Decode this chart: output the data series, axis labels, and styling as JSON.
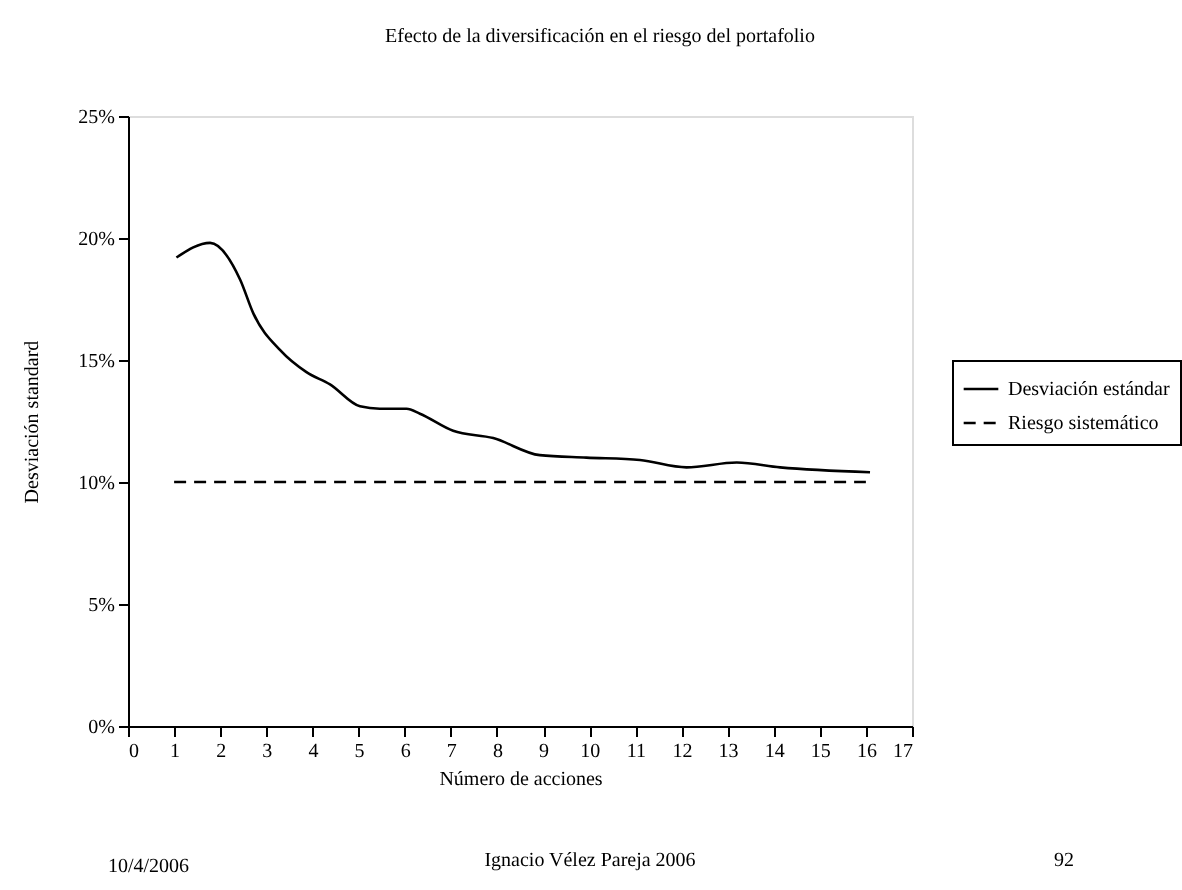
{
  "chart_data": {
    "type": "line",
    "title": "Efecto de la diversificación en el riesgo del portafolio",
    "xlabel": "Número de acciones",
    "ylabel": "Desviación standard",
    "xlim": [
      0,
      17
    ],
    "xticks": [
      0,
      1,
      2,
      3,
      4,
      5,
      6,
      7,
      8,
      9,
      10,
      11,
      12,
      13,
      14,
      15,
      16,
      17
    ],
    "ylim": [
      0,
      25
    ],
    "yticks": [
      {
        "value": 0,
        "label": "0%"
      },
      {
        "value": 5,
        "label": "5%"
      },
      {
        "value": 10,
        "label": "10%"
      },
      {
        "value": 15,
        "label": "15%"
      },
      {
        "value": 20,
        "label": "20%"
      },
      {
        "value": 25,
        "label": "25%"
      }
    ],
    "grid": false,
    "legend": "right",
    "marker": "none",
    "series": [
      {
        "name": "Desviación estándar",
        "color": "#000000",
        "line_style": "solid",
        "x": [
          1.05,
          1.78,
          2.43,
          2.72,
          3.3,
          3.87,
          4.38,
          5.03,
          5.46,
          6.04,
          6.33,
          7.05,
          7.92,
          8.93,
          9.94,
          11.1,
          12.11,
          13.2,
          14.14,
          16.09
        ],
        "values": [
          19.2,
          19.8,
          18.3,
          16.9,
          15.4,
          14.5,
          14.0,
          13.1,
          13.0,
          13.0,
          12.8,
          12.1,
          11.8,
          11.1,
          11.0,
          10.9,
          10.6,
          10.8,
          10.6,
          10.4
        ]
      },
      {
        "name": "Riesgo sistemático",
        "color": "#000000",
        "line_style": "dashed",
        "x": [
          1,
          16
        ],
        "values": [
          10,
          10
        ]
      }
    ],
    "annotations": [
      "10/4/2006",
      "Ignacio Vélez Pareja 2006",
      "92"
    ]
  }
}
